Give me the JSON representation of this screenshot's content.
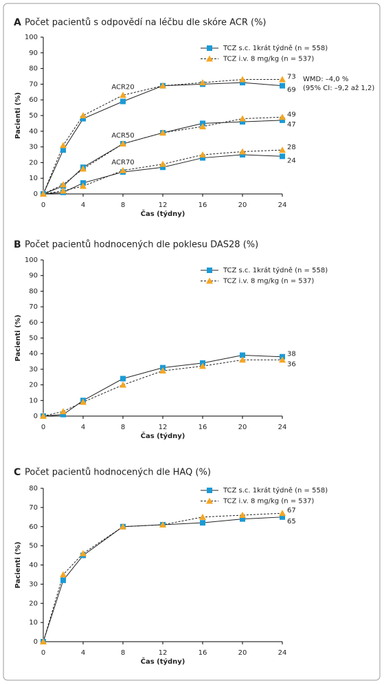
{
  "chart_data": [
    {
      "type": "line",
      "label": "A",
      "title": "Počet pacientů s odpovědí na léčbu dle skóre ACR (%)",
      "xlabel": "Čas (týdny)",
      "ylabel": "Pacienti (%)",
      "x": [
        0,
        2,
        4,
        8,
        12,
        16,
        20,
        24
      ],
      "xlim": [
        0,
        24
      ],
      "xticks": [
        0,
        4,
        8,
        12,
        16,
        20,
        24
      ],
      "ylim": [
        0,
        100
      ],
      "yticks": [
        0,
        10,
        20,
        30,
        40,
        50,
        60,
        70,
        80,
        90,
        100
      ],
      "legend": [
        {
          "name": "TCZ s.c. 1krát týdně (n = 558)",
          "color": "#1a9ad6",
          "marker": "square",
          "dashed": false
        },
        {
          "name": "TCZ i.v. 8 mg/kg (n = 537)",
          "color": "#f5a623",
          "marker": "triangle",
          "dashed": true
        }
      ],
      "groups": [
        {
          "label": "ACR20",
          "series": [
            {
              "values": [
                0,
                28,
                48,
                59,
                69,
                70,
                71,
                69
              ]
            },
            {
              "values": [
                0,
                31,
                50,
                63,
                69,
                71,
                73,
                73
              ]
            }
          ]
        },
        {
          "label": "ACR50",
          "series": [
            {
              "values": [
                0,
                5,
                17,
                32,
                39,
                45,
                46,
                47
              ]
            },
            {
              "values": [
                0,
                6,
                16,
                32,
                39,
                43,
                48,
                49
              ]
            }
          ]
        },
        {
          "label": "ACR70",
          "series": [
            {
              "values": [
                0,
                1,
                7,
                14,
                17,
                23,
                25,
                24
              ]
            },
            {
              "values": [
                0,
                2,
                5,
                15,
                19,
                25,
                27,
                28
              ]
            }
          ]
        }
      ],
      "annotations": [
        "WMD: –4,0 %",
        "(95% CI: –9,2 až 1,2)"
      ]
    },
    {
      "type": "line",
      "label": "B",
      "title": "Počet pacientů hodnocených dle poklesu DAS28 (%)",
      "xlabel": "Čas (týdny)",
      "ylabel": "Pacienti (%)",
      "x": [
        0,
        2,
        4,
        8,
        12,
        16,
        20,
        24
      ],
      "xlim": [
        0,
        24
      ],
      "xticks": [
        0,
        4,
        8,
        12,
        16,
        20,
        24
      ],
      "ylim": [
        0,
        100
      ],
      "yticks": [
        0,
        10,
        20,
        30,
        40,
        50,
        60,
        70,
        80,
        90,
        100
      ],
      "legend": [
        {
          "name": "TCZ s.c. 1krát týdně (n = 558)",
          "color": "#1a9ad6",
          "marker": "square",
          "dashed": false
        },
        {
          "name": "TCZ i.v. 8 mg/kg (n = 537)",
          "color": "#f5a623",
          "marker": "triangle",
          "dashed": true
        }
      ],
      "groups": [
        {
          "series": [
            {
              "values": [
                0,
                1,
                10,
                24,
                31,
                34,
                39,
                38
              ]
            },
            {
              "values": [
                0,
                3,
                9,
                20,
                29,
                32,
                36,
                36
              ]
            }
          ]
        }
      ]
    },
    {
      "type": "line",
      "label": "C",
      "title": "Počet pacientů hodnocených dle HAQ (%)",
      "xlabel": "Čas (týdny)",
      "ylabel": "Pacienti (%)",
      "x": [
        0,
        2,
        4,
        8,
        12,
        16,
        20,
        24
      ],
      "xlim": [
        0,
        24
      ],
      "xticks": [
        0,
        4,
        8,
        12,
        16,
        20,
        24
      ],
      "ylim": [
        0,
        80
      ],
      "yticks": [
        0,
        10,
        20,
        30,
        40,
        50,
        60,
        70,
        80
      ],
      "legend": [
        {
          "name": "TCZ s.c. 1krát týdně (n = 558)",
          "color": "#1a9ad6",
          "marker": "square",
          "dashed": false
        },
        {
          "name": "TCZ i.v. 8 mg/kg (n = 537)",
          "color": "#f5a623",
          "marker": "triangle",
          "dashed": true
        }
      ],
      "groups": [
        {
          "series": [
            {
              "values": [
                0,
                32,
                45,
                60,
                61,
                62,
                64,
                65
              ]
            },
            {
              "values": [
                0,
                35,
                46,
                60,
                61,
                65,
                66,
                67
              ]
            }
          ]
        }
      ]
    }
  ]
}
